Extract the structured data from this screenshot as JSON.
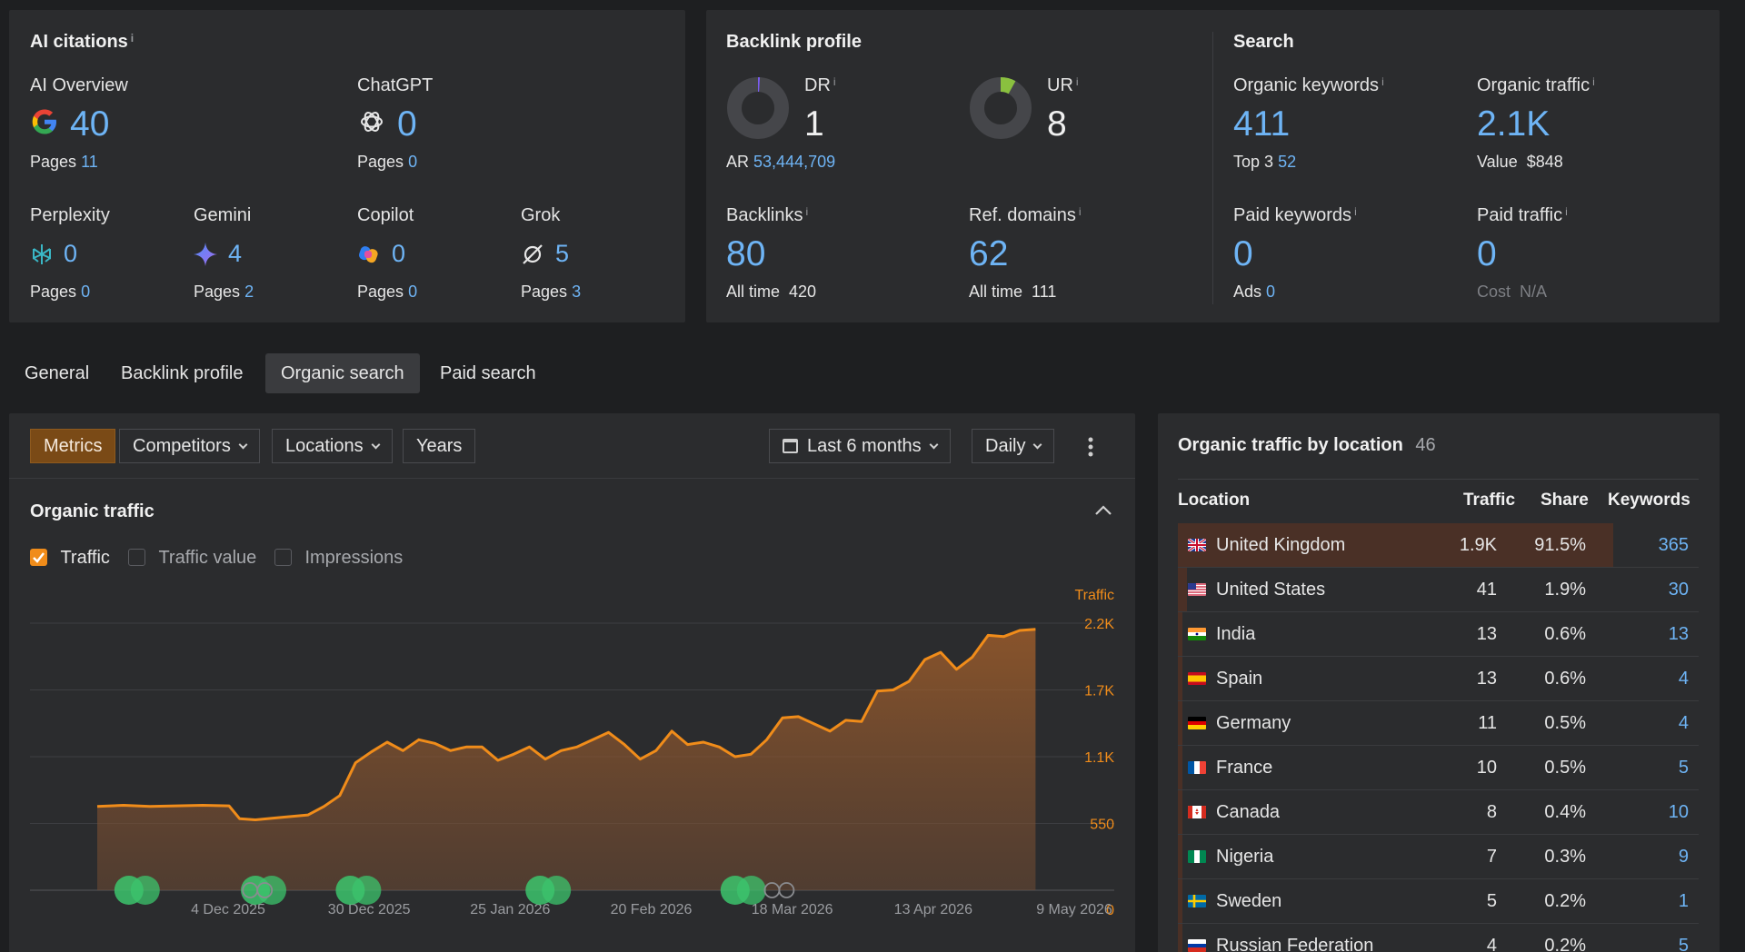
{
  "ai_citations": {
    "title": "AI citations",
    "items": [
      {
        "name": "AI Overview",
        "value": "40",
        "pages_label": "Pages",
        "pages": "11",
        "icon": "google-icon"
      },
      {
        "name": "ChatGPT",
        "value": "0",
        "pages_label": "Pages",
        "pages": "0",
        "icon": "chatgpt-icon"
      },
      {
        "name": "Perplexity",
        "value": "0",
        "pages_label": "Pages",
        "pages": "0",
        "icon": "perplexity-icon"
      },
      {
        "name": "Gemini",
        "value": "4",
        "pages_label": "Pages",
        "pages": "2",
        "icon": "gemini-icon"
      },
      {
        "name": "Copilot",
        "value": "0",
        "pages_label": "Pages",
        "pages": "0",
        "icon": "copilot-icon"
      },
      {
        "name": "Grok",
        "value": "5",
        "pages_label": "Pages",
        "pages": "3",
        "icon": "grok-icon"
      }
    ]
  },
  "backlink_profile": {
    "title": "Backlink profile",
    "dr_label": "DR",
    "dr_value": "1",
    "dr_fraction": 0.01,
    "ar_label": "AR",
    "ar_value": "53,444,709",
    "ur_label": "UR",
    "ur_value": "8",
    "ur_fraction": 0.08,
    "backlinks_label": "Backlinks",
    "backlinks_value": "80",
    "backlinks_alltime_label": "All time",
    "backlinks_alltime": "420",
    "refdomains_label": "Ref. domains",
    "refdomains_value": "62",
    "refdomains_alltime_label": "All time",
    "refdomains_alltime": "111"
  },
  "search": {
    "title": "Search",
    "organic_keywords_label": "Organic keywords",
    "organic_keywords": "411",
    "top3_label": "Top 3",
    "top3": "52",
    "organic_traffic_label": "Organic traffic",
    "organic_traffic": "2.1K",
    "value_label": "Value",
    "value": "$848",
    "paid_keywords_label": "Paid keywords",
    "paid_keywords": "0",
    "ads_label": "Ads",
    "ads": "0",
    "paid_traffic_label": "Paid traffic",
    "paid_traffic": "0",
    "cost_label": "Cost",
    "cost": "N/A"
  },
  "tabs": [
    "General",
    "Backlink profile",
    "Organic search",
    "Paid search"
  ],
  "toolbar": {
    "metrics": "Metrics",
    "competitors": "Competitors",
    "locations": "Locations",
    "years": "Years",
    "period": "Last 6 months",
    "granularity": "Daily"
  },
  "traffic_panel": {
    "title": "Organic traffic",
    "checkboxes": [
      {
        "label": "Traffic",
        "checked": true
      },
      {
        "label": "Traffic value",
        "checked": false
      },
      {
        "label": "Impressions",
        "checked": false
      }
    ]
  },
  "chart_data": {
    "type": "area",
    "ylabel": "Traffic",
    "y_ticks": [
      "2.2K",
      "1.7K",
      "1.1K",
      "550",
      "0"
    ],
    "ylim": [
      0,
      2200
    ],
    "x_ticks": [
      "4 Dec 2025",
      "30 Dec 2025",
      "25 Jan 2026",
      "20 Feb 2026",
      "18 Mar 2026",
      "13 Apr 2026",
      "9 May 2026"
    ],
    "x_range": [
      "2025-11-15",
      "2026-05-14"
    ],
    "grid": true,
    "color": "#f08c1a",
    "series": [
      {
        "values": [
          [
            "2025-11-15",
            690
          ],
          [
            "2025-11-20",
            700
          ],
          [
            "2025-11-25",
            690
          ],
          [
            "2025-11-30",
            695
          ],
          [
            "2025-12-05",
            700
          ],
          [
            "2025-12-10",
            695
          ],
          [
            "2025-12-12",
            590
          ],
          [
            "2025-12-15",
            580
          ],
          [
            "2025-12-20",
            600
          ],
          [
            "2025-12-25",
            620
          ],
          [
            "2025-12-28",
            690
          ],
          [
            "2025-12-31",
            780
          ],
          [
            "2026-01-03",
            1050
          ],
          [
            "2026-01-06",
            1140
          ],
          [
            "2026-01-09",
            1220
          ],
          [
            "2026-01-12",
            1150
          ],
          [
            "2026-01-15",
            1240
          ],
          [
            "2026-01-18",
            1210
          ],
          [
            "2026-01-21",
            1150
          ],
          [
            "2026-01-24",
            1180
          ],
          [
            "2026-01-27",
            1180
          ],
          [
            "2026-01-30",
            1070
          ],
          [
            "2026-02-02",
            1120
          ],
          [
            "2026-02-05",
            1180
          ],
          [
            "2026-02-08",
            1080
          ],
          [
            "2026-02-11",
            1150
          ],
          [
            "2026-02-14",
            1180
          ],
          [
            "2026-02-17",
            1240
          ],
          [
            "2026-02-20",
            1300
          ],
          [
            "2026-02-23",
            1200
          ],
          [
            "2026-02-26",
            1080
          ],
          [
            "2026-03-01",
            1150
          ],
          [
            "2026-03-04",
            1310
          ],
          [
            "2026-03-07",
            1200
          ],
          [
            "2026-03-10",
            1220
          ],
          [
            "2026-03-13",
            1180
          ],
          [
            "2026-03-16",
            1100
          ],
          [
            "2026-03-19",
            1120
          ],
          [
            "2026-03-22",
            1240
          ],
          [
            "2026-03-25",
            1420
          ],
          [
            "2026-03-28",
            1430
          ],
          [
            "2026-03-31",
            1370
          ],
          [
            "2026-04-03",
            1310
          ],
          [
            "2026-04-06",
            1400
          ],
          [
            "2026-04-09",
            1390
          ],
          [
            "2026-04-12",
            1640
          ],
          [
            "2026-04-15",
            1650
          ],
          [
            "2026-04-18",
            1720
          ],
          [
            "2026-04-21",
            1900
          ],
          [
            "2026-04-24",
            1960
          ],
          [
            "2026-04-27",
            1820
          ],
          [
            "2026-04-30",
            1920
          ],
          [
            "2026-05-03",
            2100
          ],
          [
            "2026-05-06",
            2090
          ],
          [
            "2026-05-09",
            2140
          ],
          [
            "2026-05-12",
            2150
          ]
        ]
      }
    ],
    "markers": [
      {
        "date": "2025-11-21",
        "kind": "green"
      },
      {
        "date": "2025-12-15",
        "kind": "green"
      },
      {
        "date": "2026-01-02",
        "kind": "green"
      },
      {
        "date": "2026-02-07",
        "kind": "green"
      },
      {
        "date": "2026-03-16",
        "kind": "green"
      },
      {
        "date": "2025-12-14",
        "kind": "g"
      },
      {
        "date": "2026-03-23",
        "kind": "g"
      }
    ]
  },
  "location_panel": {
    "title": "Organic traffic by location",
    "count": "46",
    "columns": [
      "Location",
      "Traffic",
      "Share",
      "Keywords"
    ],
    "rows": [
      {
        "country": "United Kingdom",
        "traffic": "1.9K",
        "share": "91.5%",
        "share_frac": 0.915,
        "keywords": "365",
        "flag": "uk"
      },
      {
        "country": "United States",
        "traffic": "41",
        "share": "1.9%",
        "share_frac": 0.019,
        "keywords": "30",
        "flag": "us"
      },
      {
        "country": "India",
        "traffic": "13",
        "share": "0.6%",
        "share_frac": 0.006,
        "keywords": "13",
        "flag": "in"
      },
      {
        "country": "Spain",
        "traffic": "13",
        "share": "0.6%",
        "share_frac": 0.006,
        "keywords": "4",
        "flag": "es"
      },
      {
        "country": "Germany",
        "traffic": "11",
        "share": "0.5%",
        "share_frac": 0.005,
        "keywords": "4",
        "flag": "de"
      },
      {
        "country": "France",
        "traffic": "10",
        "share": "0.5%",
        "share_frac": 0.005,
        "keywords": "5",
        "flag": "fr"
      },
      {
        "country": "Canada",
        "traffic": "8",
        "share": "0.4%",
        "share_frac": 0.004,
        "keywords": "10",
        "flag": "ca"
      },
      {
        "country": "Nigeria",
        "traffic": "7",
        "share": "0.3%",
        "share_frac": 0.003,
        "keywords": "9",
        "flag": "ng"
      },
      {
        "country": "Sweden",
        "traffic": "5",
        "share": "0.2%",
        "share_frac": 0.002,
        "keywords": "1",
        "flag": "se"
      },
      {
        "country": "Russian Federation",
        "traffic": "4",
        "share": "0.2%",
        "share_frac": 0.002,
        "keywords": "5",
        "flag": "ru"
      }
    ]
  }
}
